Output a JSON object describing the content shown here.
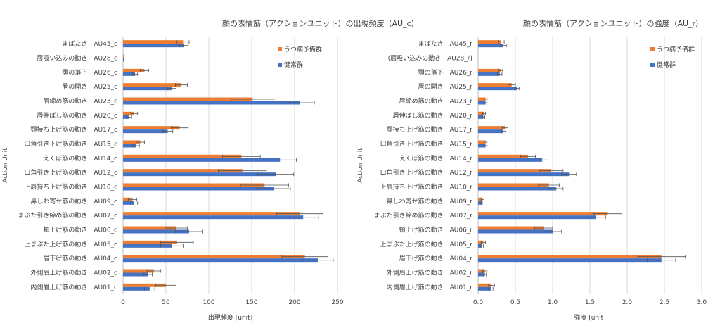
{
  "colors": {
    "depression": "#ED7D31",
    "healthy": "#4472C4",
    "grid": "#D9D9D9",
    "axis": "#BFBFBF",
    "err": "#555555"
  },
  "chart_data": [
    {
      "type": "bar",
      "orientation": "horizontal",
      "title": "顔の表情筋（アクションユニット）の出現頻度（AU_c）",
      "xlabel": "出現頻度 [unit]",
      "ylabel": "Action Unit",
      "xlim": [
        0,
        250
      ],
      "xticks": [
        0,
        50,
        100,
        150,
        200,
        250
      ],
      "grid": true,
      "legend_position": "top-right",
      "categories": [
        "まばたき　AU45_c",
        "唇吸い込みの動き　AU28_c",
        "顎の落下　AU26_c",
        "唇の開き　AU25_c",
        "唇締め筋の動き　AU23_c",
        "唇伸ばし筋の動き　AU20_c",
        "顎持ち上げ筋の動き　AU17_c",
        "口角引き下げ筋の動き　AU15_c",
        "えくぼ筋の動き　AU14_c",
        "口角引き上げ筋の動き　AU12_c",
        "上唇持ち上げ筋の動き　AU10_c",
        "鼻しわ寄せ筋の動き　AU09_c",
        "まぶた引き締め筋の動き　AU07_c",
        "頬上げ筋の動き　AU06_c",
        "上まぶた上げ筋の動き　AU05_c",
        "眉下げ筋の動き　AU04_c",
        "外側眉上げ筋の動き　AU02_c",
        "内側眉上げ筋の動き　AU01_c"
      ],
      "series": [
        {
          "name": "うつ病予備群",
          "values": [
            70,
            1,
            25,
            68,
            151,
            13,
            66,
            20,
            138,
            139,
            165,
            11,
            206,
            62,
            63,
            212,
            36,
            50
          ],
          "errors": [
            7,
            0,
            5,
            7,
            25,
            4,
            10,
            5,
            22,
            28,
            28,
            5,
            27,
            13,
            19,
            27,
            8,
            12
          ]
        },
        {
          "name": "健常群",
          "values": [
            71,
            1,
            14,
            57,
            206,
            7,
            52,
            15,
            183,
            178,
            176,
            13,
            210,
            77,
            57,
            227,
            29,
            31
          ],
          "errors": [
            5,
            0,
            3,
            5,
            17,
            3,
            6,
            4,
            19,
            21,
            19,
            4,
            18,
            16,
            13,
            18,
            5,
            6
          ]
        }
      ]
    },
    {
      "type": "bar",
      "orientation": "horizontal",
      "title": "顔の表情筋（アクションユニット）の強度（AU_r）",
      "xlabel": "強度 [unit]",
      "ylabel": "Action Unit",
      "xlim": [
        0,
        3
      ],
      "xticks": [
        "0.0",
        "0.5",
        "1.0",
        "1.5",
        "2.0",
        "2.5",
        "3.0"
      ],
      "grid": true,
      "legend_position": "top-right",
      "categories": [
        "まばたき　AU45_r",
        "(唇吸い込みの動き　AU28_r)",
        "顎の落下　AU26_r",
        "唇の開き　AU25_r",
        "唇締め筋の動き　AU23_r",
        "唇伸ばし筋の動き　AU20_r",
        "顎持ち上げ筋の動き　AU17_r",
        "口角引き下げ筋の動き　AU15_r",
        "えくぼ筋の動き　AU14_r",
        "口角引き上げ筋の動き　AU12_r",
        "上唇持ち上げ筋の動き　AU10_r",
        "鼻しわ寄せ筋の動き　AU09_r",
        "まぶた引き締め筋の動き　AU07_r",
        "頬上げ筋の動き　AU06_r",
        "上まぶた上げ筋の動き　AU05_r",
        "眉下げ筋の動き　AU04_r",
        "外側眉上げ筋の動き　AU02_r",
        "内側眉上げ筋の動き　AU01_r"
      ],
      "series": [
        {
          "name": "うつ病予備群",
          "values": [
            0.31,
            0,
            0.3,
            0.45,
            0.1,
            0.08,
            0.36,
            0.1,
            0.67,
            0.98,
            0.95,
            0.06,
            1.74,
            0.88,
            0.07,
            2.46,
            0.09,
            0.18
          ],
          "errors": [
            0.04,
            0,
            0.03,
            0.05,
            0.02,
            0.02,
            0.04,
            0.02,
            0.1,
            0.16,
            0.14,
            0.02,
            0.19,
            0.12,
            0.03,
            0.32,
            0.03,
            0.04
          ]
        },
        {
          "name": "健常群",
          "values": [
            0.34,
            0,
            0.29,
            0.52,
            0.1,
            0.07,
            0.34,
            0.1,
            0.86,
            1.22,
            1.05,
            0.06,
            1.58,
            1.0,
            0.05,
            2.46,
            0.09,
            0.17
          ],
          "errors": [
            0.04,
            0,
            0.03,
            0.03,
            0.02,
            0.02,
            0.03,
            0.02,
            0.08,
            0.1,
            0.09,
            0.02,
            0.13,
            0.12,
            0.02,
            0.19,
            0.02,
            0.03
          ]
        }
      ]
    }
  ]
}
